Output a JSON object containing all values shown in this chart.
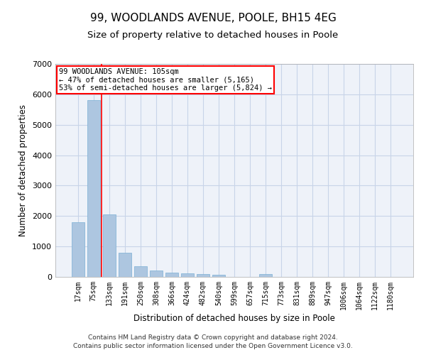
{
  "title": "99, WOODLANDS AVENUE, POOLE, BH15 4EG",
  "subtitle": "Size of property relative to detached houses in Poole",
  "xlabel": "Distribution of detached houses by size in Poole",
  "ylabel": "Number of detached properties",
  "categories": [
    "17sqm",
    "75sqm",
    "133sqm",
    "191sqm",
    "250sqm",
    "308sqm",
    "366sqm",
    "424sqm",
    "482sqm",
    "540sqm",
    "599sqm",
    "657sqm",
    "715sqm",
    "773sqm",
    "831sqm",
    "889sqm",
    "947sqm",
    "1006sqm",
    "1064sqm",
    "1122sqm",
    "1180sqm"
  ],
  "values": [
    1800,
    5800,
    2050,
    800,
    350,
    200,
    130,
    115,
    100,
    80,
    0,
    0,
    100,
    0,
    0,
    0,
    0,
    0,
    0,
    0,
    0
  ],
  "bar_color": "#adc6e0",
  "bar_edge_color": "#7aafd4",
  "ylim": [
    0,
    7000
  ],
  "yticks": [
    0,
    1000,
    2000,
    3000,
    4000,
    5000,
    6000,
    7000
  ],
  "property_label": "99 WOODLANDS AVENUE: 105sqm",
  "annotation_line1": "← 47% of detached houses are smaller (5,165)",
  "annotation_line2": "53% of semi-detached houses are larger (5,824) →",
  "footer_line1": "Contains HM Land Registry data © Crown copyright and database right 2024.",
  "footer_line2": "Contains public sector information licensed under the Open Government Licence v3.0.",
  "bg_color": "#eef2f9",
  "grid_color": "#c8d4e8",
  "title_fontsize": 11,
  "subtitle_fontsize": 9.5,
  "axis_label_fontsize": 8.5,
  "tick_fontsize": 7,
  "footer_fontsize": 6.5,
  "annotation_fontsize": 7.5
}
